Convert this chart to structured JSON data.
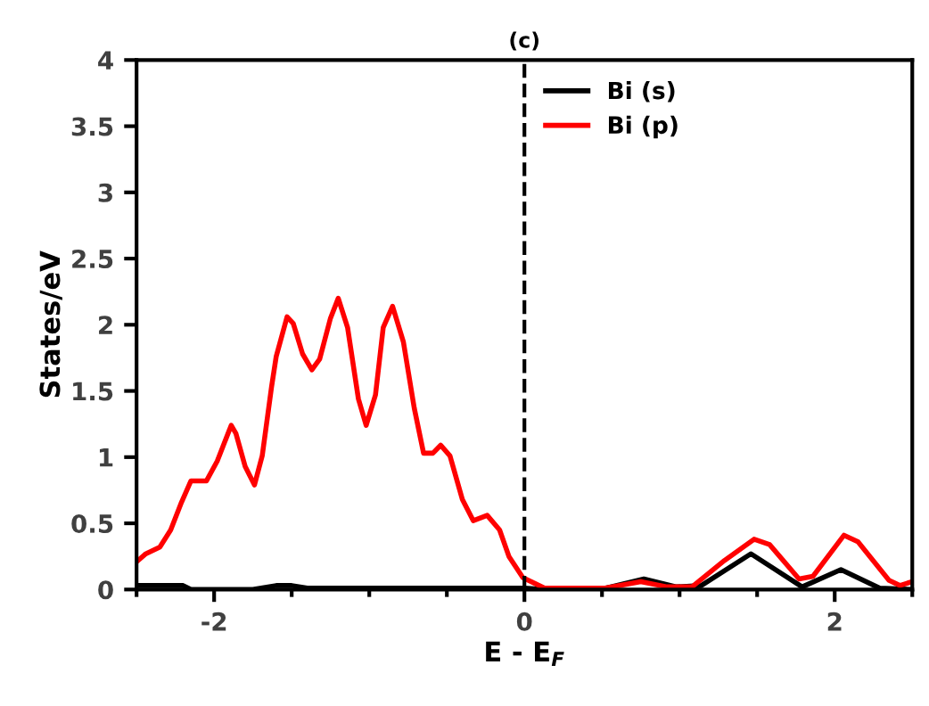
{
  "chart_data": {
    "type": "line",
    "title": "(c)",
    "xlabel": "E - E$_{F}$",
    "ylabel": "States/eV",
    "xlim": [
      -2.5,
      2.5
    ],
    "ylim": [
      0,
      4
    ],
    "xticks": [
      {
        "value": -2.5,
        "label": null
      },
      {
        "value": -2,
        "label": "-2"
      },
      {
        "value": -1.5,
        "label": null
      },
      {
        "value": -1,
        "label": null
      },
      {
        "value": -0.5,
        "label": null
      },
      0,
      {
        "value": 0.5,
        "label": null
      },
      {
        "value": 1,
        "label": null
      },
      {
        "value": 1.5,
        "label": null
      },
      2,
      {
        "value": 2.5,
        "label": null
      }
    ],
    "yticks": [
      0,
      0.5,
      1,
      1.5,
      2,
      2.5,
      3,
      3.5,
      4
    ],
    "grid": false,
    "legend": "top",
    "marker": "none",
    "line_style": "solid",
    "ref_lines": [
      {
        "axis": "x",
        "value": 0,
        "label": null,
        "color": "#000000",
        "line_style": "dashed"
      }
    ],
    "series": [
      {
        "name": "Bi (s)",
        "color": "#000000",
        "x": [
          -2.5,
          -2.2,
          -2.15,
          -1.75,
          -1.6,
          -1.5,
          -1.4,
          -0.9,
          -0.25,
          0,
          0.13,
          0.52,
          0.77,
          0.98,
          1.14,
          1.46,
          1.79,
          2.04,
          2.29,
          2.5
        ],
        "values": [
          0.03,
          0.03,
          0,
          0,
          0.03,
          0.03,
          0.01,
          0.01,
          0.01,
          0.01,
          0,
          0.01,
          0.08,
          0.02,
          0.03,
          0.27,
          0.02,
          0.15,
          0.01,
          0
        ]
      },
      {
        "name": "Bi (p)",
        "color": "#ff0000",
        "x": [
          -2.5,
          -2.44,
          -2.35,
          -2.28,
          -2.21,
          -2.15,
          -2.05,
          -1.98,
          -1.89,
          -1.86,
          -1.8,
          -1.74,
          -1.69,
          -1.63,
          -1.6,
          -1.53,
          -1.49,
          -1.43,
          -1.37,
          -1.32,
          -1.25,
          -1.2,
          -1.14,
          -1.07,
          -1.02,
          -0.96,
          -0.91,
          -0.85,
          -0.78,
          -0.71,
          -0.65,
          -0.59,
          -0.54,
          -0.48,
          -0.4,
          -0.33,
          -0.24,
          -0.16,
          -0.1,
          -0.01,
          0.13,
          0.52,
          0.75,
          0.92,
          1.08,
          1.29,
          1.48,
          1.58,
          1.77,
          1.86,
          2.06,
          2.15,
          2.35,
          2.42,
          2.5
        ],
        "values": [
          0.21,
          0.27,
          0.32,
          0.45,
          0.66,
          0.82,
          0.82,
          0.97,
          1.24,
          1.18,
          0.93,
          0.79,
          1.01,
          1.53,
          1.76,
          2.06,
          2.01,
          1.78,
          1.66,
          1.74,
          2.05,
          2.2,
          1.98,
          1.44,
          1.24,
          1.47,
          1.98,
          2.14,
          1.87,
          1.37,
          1.03,
          1.03,
          1.09,
          1.01,
          0.68,
          0.52,
          0.56,
          0.45,
          0.25,
          0.09,
          0.01,
          0.01,
          0.06,
          0.02,
          0.02,
          0.22,
          0.38,
          0.34,
          0.08,
          0.1,
          0.41,
          0.36,
          0.07,
          0.03,
          0.06
        ]
      }
    ]
  }
}
